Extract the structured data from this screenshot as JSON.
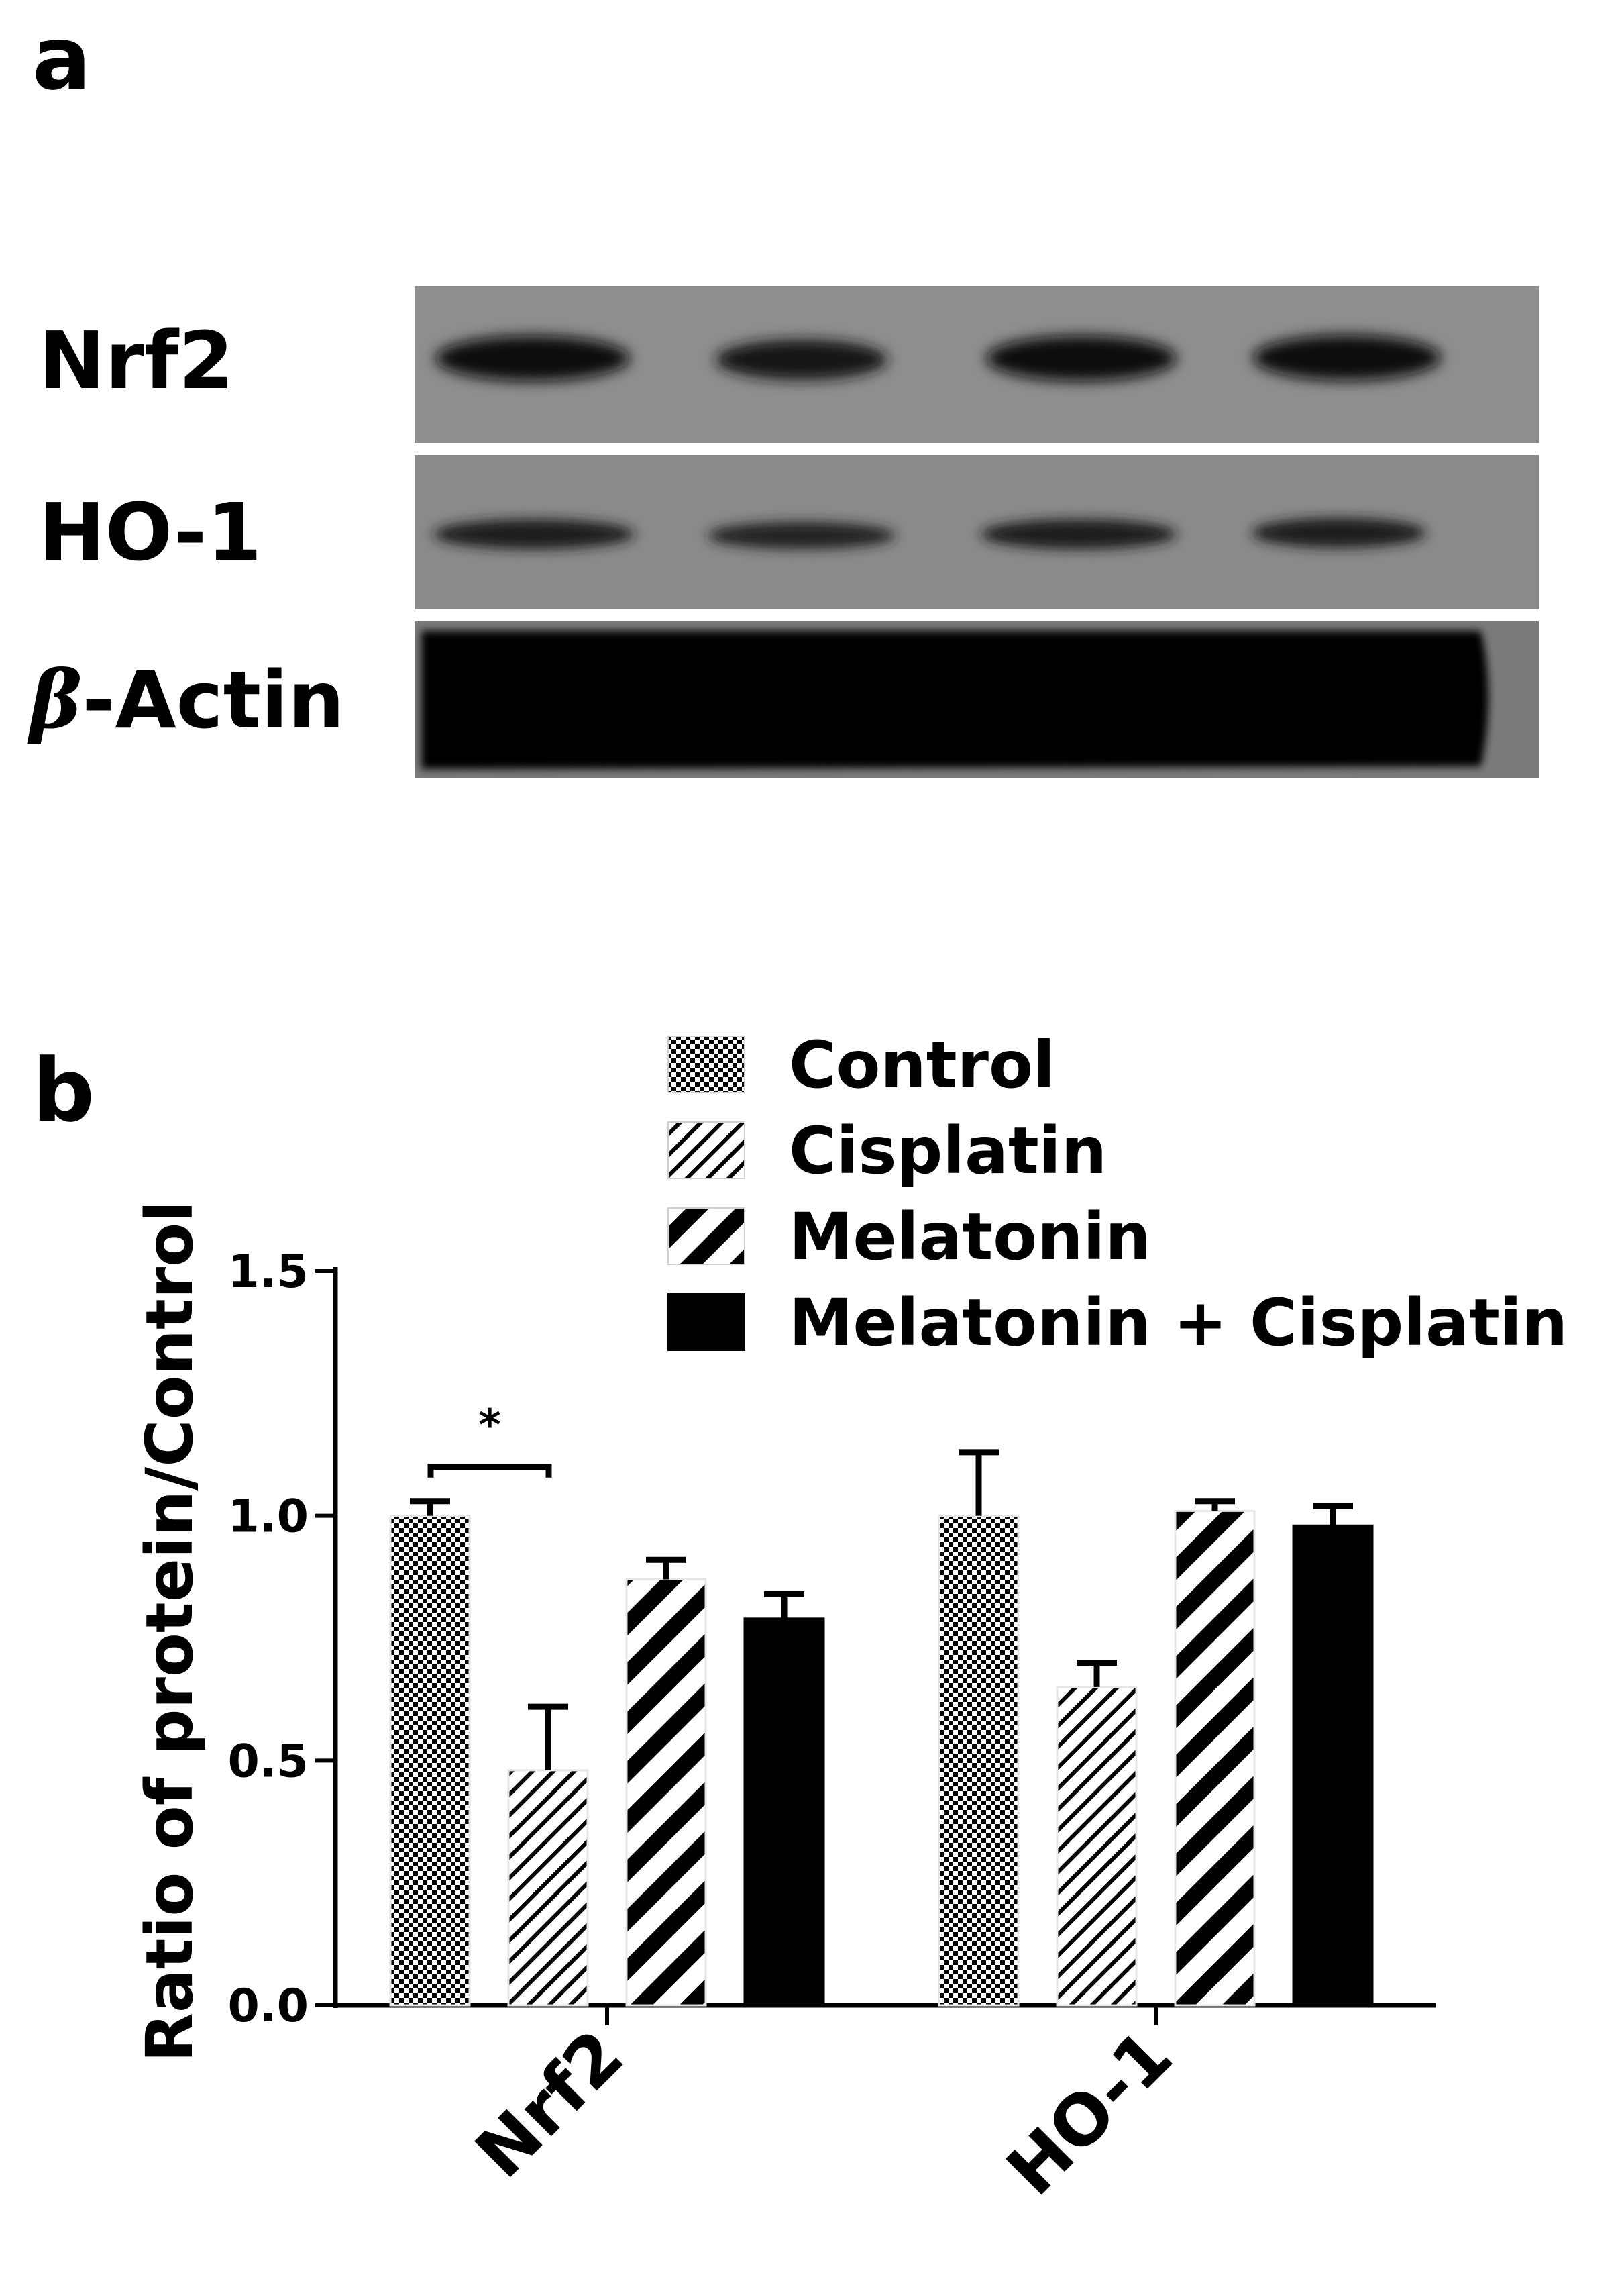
{
  "panels": {
    "a_label": "a",
    "b_label": "b"
  },
  "blot": {
    "rows": [
      {
        "name": "Nrf2",
        "background": "#8e8e8e",
        "band": "#0a0a0a"
      },
      {
        "name": "HO-1",
        "background": "#8a8a8a",
        "band": "#1a1a1a"
      },
      {
        "name": "-Actin",
        "prefix": "β",
        "background": "#7a7a7a",
        "band": "#000000"
      }
    ],
    "lanes": 4
  },
  "chart_data": {
    "type": "bar",
    "categories": [
      "Nrf2",
      "HO-1"
    ],
    "series": [
      {
        "name": "Control",
        "pattern": "checker",
        "values": [
          1.0,
          1.0
        ],
        "errors": [
          0.03,
          0.13
        ]
      },
      {
        "name": "Cisplatin",
        "pattern": "thin-diagonal",
        "values": [
          0.48,
          0.65
        ],
        "errors": [
          0.13,
          0.05
        ]
      },
      {
        "name": "Melatonin",
        "pattern": "thick-diagonal",
        "values": [
          0.87,
          1.01
        ],
        "errors": [
          0.04,
          0.02
        ]
      },
      {
        "name": "Melatonin + Cisplatin",
        "pattern": "solid",
        "values": [
          0.79,
          0.98
        ],
        "errors": [
          0.05,
          0.04
        ]
      }
    ],
    "ylabel": "Ratio of protein/Control",
    "xlabel": "",
    "ylim": [
      0,
      1.5
    ],
    "yticks": [
      "0.0",
      "0.5",
      "1.0",
      "1.5"
    ],
    "legend_position": "top-right",
    "grid": false,
    "significance": [
      {
        "category": "Nrf2",
        "between": [
          "Control",
          "Cisplatin"
        ],
        "label": "*"
      }
    ]
  }
}
